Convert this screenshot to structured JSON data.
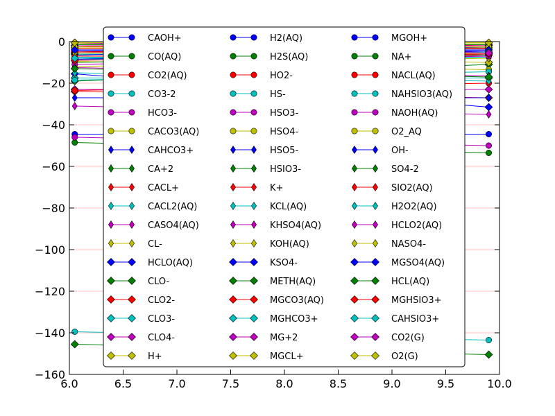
{
  "chart_data": {
    "type": "line",
    "title": "",
    "xlabel": "",
    "ylabel": "",
    "xlim": [
      6.0,
      10.0
    ],
    "ylim": [
      -160,
      0
    ],
    "x_ticks": [
      "6.0",
      "6.5",
      "7.0",
      "7.5",
      "8.0",
      "8.5",
      "9.0",
      "9.5",
      "10.0"
    ],
    "y_ticks": [
      "0",
      "−20",
      "−40",
      "−60",
      "−80",
      "−100",
      "−120",
      "−140",
      "−160"
    ],
    "grid": "horizontal",
    "legend_placement": "center",
    "legend_columns": 3,
    "x": [
      6.05,
      9.9
    ],
    "series": [
      {
        "name": "CAOH+",
        "color": "#0000ff",
        "marker": "circle",
        "values": [
          -4.5,
          -4.0
        ]
      },
      {
        "name": "CO(AQ)",
        "color": "#008000",
        "marker": "circle",
        "values": [
          -5.5,
          -6.0
        ]
      },
      {
        "name": "CO2(AQ)",
        "color": "#ff0000",
        "marker": "circle",
        "values": [
          -2.0,
          -7.0
        ]
      },
      {
        "name": "CO3-2",
        "color": "#00bfbf",
        "marker": "circle",
        "values": [
          -9.0,
          -3.0
        ]
      },
      {
        "name": "HCO3-",
        "color": "#bf00bf",
        "marker": "circle",
        "values": [
          -3.5,
          -3.2
        ]
      },
      {
        "name": "CACO3(AQ)",
        "color": "#bfbf00",
        "marker": "circle",
        "values": [
          -6.5,
          -2.5
        ]
      },
      {
        "name": "CAHCO3+",
        "color": "#0000ff",
        "marker": "thin_diamond",
        "values": [
          -4.0,
          -4.5
        ]
      },
      {
        "name": "CA+2",
        "color": "#008000",
        "marker": "thin_diamond",
        "values": [
          -2.5,
          -2.5
        ]
      },
      {
        "name": "CACL+",
        "color": "#ff0000",
        "marker": "thin_diamond",
        "values": [
          -3.0,
          -3.0
        ]
      },
      {
        "name": "CACL2(AQ)",
        "color": "#00bfbf",
        "marker": "thin_diamond",
        "values": [
          -7.5,
          -7.5
        ]
      },
      {
        "name": "CASO4(AQ)",
        "color": "#bf00bf",
        "marker": "thin_diamond",
        "values": [
          -5.0,
          -5.0
        ]
      },
      {
        "name": "CL-",
        "color": "#bfbf00",
        "marker": "thin_diamond",
        "values": [
          -1.0,
          -1.0
        ]
      },
      {
        "name": "HCLO(AQ)",
        "color": "#0000ff",
        "marker": "diamond",
        "values": [
          -15.5,
          -31.5
        ]
      },
      {
        "name": "CLO-",
        "color": "#008000",
        "marker": "diamond",
        "values": [
          -19.0,
          -11.0
        ]
      },
      {
        "name": "CLO2-",
        "color": "#ff0000",
        "marker": "diamond",
        "values": [
          -24.0,
          -27.0
        ]
      },
      {
        "name": "CLO3-",
        "color": "#00bfbf",
        "marker": "diamond",
        "values": [
          -17.5,
          -17.5
        ]
      },
      {
        "name": "CLO4-",
        "color": "#bf00bf",
        "marker": "diamond",
        "values": [
          -23.0,
          -23.0
        ]
      },
      {
        "name": "H+",
        "color": "#bfbf00",
        "marker": "diamond",
        "values": [
          -6.0,
          -10.0
        ]
      },
      {
        "name": "H2(AQ)",
        "color": "#0000ff",
        "marker": "circle",
        "values": [
          -44.5,
          -44.5
        ]
      },
      {
        "name": "H2S(AQ)",
        "color": "#008000",
        "marker": "circle",
        "values": [
          -48.5,
          -53.5
        ]
      },
      {
        "name": "HO2-",
        "color": "#ff0000",
        "marker": "circle",
        "values": [
          -23.5,
          -20.0
        ]
      },
      {
        "name": "HS-",
        "color": "#00bfbf",
        "marker": "circle",
        "values": [
          -139.5,
          -143.5
        ]
      },
      {
        "name": "HSO3-",
        "color": "#bf00bf",
        "marker": "circle",
        "values": [
          -46.0,
          -50.0
        ]
      },
      {
        "name": "HSO4-",
        "color": "#bfbf00",
        "marker": "circle",
        "values": [
          -9.5,
          -13.5
        ]
      },
      {
        "name": "HSO5-",
        "color": "#0000ff",
        "marker": "thin_diamond",
        "values": [
          -27.0,
          -27.0
        ]
      },
      {
        "name": "HSIO3-",
        "color": "#008000",
        "marker": "thin_diamond",
        "values": [
          -10.0,
          -6.0
        ]
      },
      {
        "name": "K+",
        "color": "#ff0000",
        "marker": "thin_diamond",
        "values": [
          -3.5,
          -3.5
        ]
      },
      {
        "name": "KCL(AQ)",
        "color": "#00bfbf",
        "marker": "thin_diamond",
        "values": [
          -8.0,
          -8.0
        ]
      },
      {
        "name": "KHSO4(AQ)",
        "color": "#bf00bf",
        "marker": "thin_diamond",
        "values": [
          -31.0,
          -35.0
        ]
      },
      {
        "name": "KOH(AQ)",
        "color": "#bfbf00",
        "marker": "thin_diamond",
        "values": [
          -12.0,
          -8.0
        ]
      },
      {
        "name": "KSO4-",
        "color": "#0000ff",
        "marker": "diamond",
        "values": [
          -5.5,
          -5.5
        ]
      },
      {
        "name": "METH(AQ)",
        "color": "#008000",
        "marker": "diamond",
        "values": [
          -145.5,
          -150.5
        ]
      },
      {
        "name": "MGCO3(AQ)",
        "color": "#ff0000",
        "marker": "diamond",
        "values": [
          -5.0,
          -1.5
        ]
      },
      {
        "name": "MGHCO3+",
        "color": "#00bfbf",
        "marker": "diamond",
        "values": [
          -6.0,
          -6.5
        ]
      },
      {
        "name": "MG+2",
        "color": "#bf00bf",
        "marker": "diamond",
        "values": [
          -2.0,
          -2.0
        ]
      },
      {
        "name": "MGCL+",
        "color": "#bfbf00",
        "marker": "diamond",
        "values": [
          -3.0,
          -3.0
        ]
      },
      {
        "name": "MGOH+",
        "color": "#0000ff",
        "marker": "circle",
        "values": [
          -6.5,
          -2.5
        ]
      },
      {
        "name": "NA+",
        "color": "#008000",
        "marker": "circle",
        "values": [
          -1.5,
          -1.5
        ]
      },
      {
        "name": "NACL(AQ)",
        "color": "#ff0000",
        "marker": "circle",
        "values": [
          -7.0,
          -7.0
        ]
      },
      {
        "name": "NAHSIO3(AQ)",
        "color": "#00bfbf",
        "marker": "circle",
        "values": [
          -18.5,
          -14.5
        ]
      },
      {
        "name": "NAOH(AQ)",
        "color": "#bf00bf",
        "marker": "circle",
        "values": [
          -11.0,
          -7.0
        ]
      },
      {
        "name": "O2_AQ",
        "color": "#bfbf00",
        "marker": "circle",
        "values": [
          -2.5,
          -2.5
        ]
      },
      {
        "name": "OH-",
        "color": "#0000ff",
        "marker": "thin_diamond",
        "values": [
          -8.5,
          -4.5
        ]
      },
      {
        "name": "SO4-2",
        "color": "#008000",
        "marker": "thin_diamond",
        "values": [
          -4.0,
          -4.0
        ]
      },
      {
        "name": "SIO2(AQ)",
        "color": "#ff0000",
        "marker": "thin_diamond",
        "values": [
          -5.0,
          -6.0
        ]
      },
      {
        "name": "H2O2(AQ)",
        "color": "#00bfbf",
        "marker": "thin_diamond",
        "values": [
          -15.0,
          -19.0
        ]
      },
      {
        "name": "HCLO2(AQ)",
        "color": "#bf00bf",
        "marker": "thin_diamond",
        "values": [
          -12.5,
          -16.5
        ]
      },
      {
        "name": "NASO4-",
        "color": "#bfbf00",
        "marker": "thin_diamond",
        "values": [
          -5.5,
          -5.5
        ]
      },
      {
        "name": "MGSO4(AQ)",
        "color": "#0000ff",
        "marker": "diamond",
        "values": [
          -4.0,
          -4.0
        ]
      },
      {
        "name": "HCL(AQ)",
        "color": "#008000",
        "marker": "diamond",
        "values": [
          -13.0,
          -17.0
        ]
      },
      {
        "name": "MGHSIO3+",
        "color": "#ff0000",
        "marker": "diamond",
        "values": [
          -9.0,
          -6.0
        ]
      },
      {
        "name": "CAHSIO3+",
        "color": "#00bfbf",
        "marker": "diamond",
        "values": [
          -8.0,
          -5.0
        ]
      },
      {
        "name": "CO2(G)",
        "color": "#bf00bf",
        "marker": "diamond",
        "values": [
          -0.5,
          -5.5
        ]
      },
      {
        "name": "O2(G)",
        "color": "#bfbf00",
        "marker": "diamond",
        "values": [
          -0.5,
          -0.5
        ]
      }
    ]
  }
}
